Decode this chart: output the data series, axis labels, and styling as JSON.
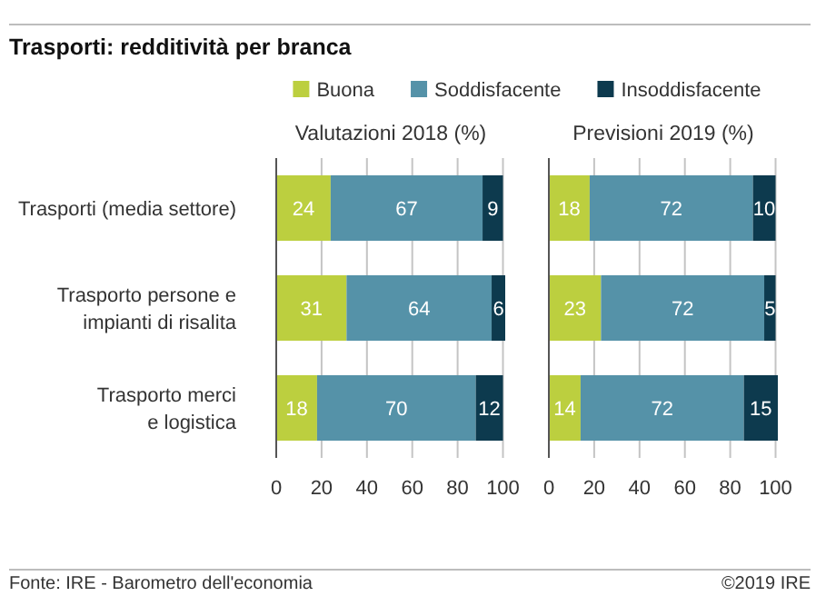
{
  "chart_data": [
    {
      "type": "bar",
      "orientation": "horizontal",
      "stacked": true,
      "title": "Trasporti: redditività per branca",
      "subtitle": "Valutazioni 2018 (%)",
      "categories": [
        "Trasporti (media settore)",
        "Trasporto persone e impianti di risalita",
        "Trasporto merci e logistica"
      ],
      "series": [
        {
          "name": "Buona",
          "color": "#bccf3f",
          "values": [
            24,
            31,
            18
          ]
        },
        {
          "name": "Soddisfacente",
          "color": "#5592a8",
          "values": [
            67,
            64,
            70
          ]
        },
        {
          "name": "Insoddisfacente",
          "color": "#0d3a4e",
          "values": [
            9,
            6,
            12
          ]
        }
      ],
      "xlim": [
        0,
        101
      ],
      "xticks": [
        0,
        20,
        40,
        60,
        80,
        100
      ],
      "grid": "x",
      "data_labels": true,
      "legend": "top",
      "annotations": [
        "Fonte: IRE - Barometro dell'economia",
        "©2019 IRE"
      ]
    },
    {
      "type": "bar",
      "orientation": "horizontal",
      "stacked": true,
      "subtitle": "Previsioni 2019 (%)",
      "categories": [
        "Trasporti (media settore)",
        "Trasporto persone e impianti di risalita",
        "Trasporto merci e logistica"
      ],
      "series": [
        {
          "name": "Buona",
          "color": "#bccf3f",
          "values": [
            18,
            23,
            14
          ]
        },
        {
          "name": "Soddisfacente",
          "color": "#5592a8",
          "values": [
            72,
            72,
            72
          ]
        },
        {
          "name": "Insoddisfacente",
          "color": "#0d3a4e",
          "values": [
            10,
            5,
            15
          ]
        }
      ],
      "xlim": [
        0,
        101
      ],
      "xticks": [
        0,
        20,
        40,
        60,
        80,
        100
      ],
      "grid": "x",
      "data_labels": true,
      "tick_labels": "x"
    }
  ]
}
